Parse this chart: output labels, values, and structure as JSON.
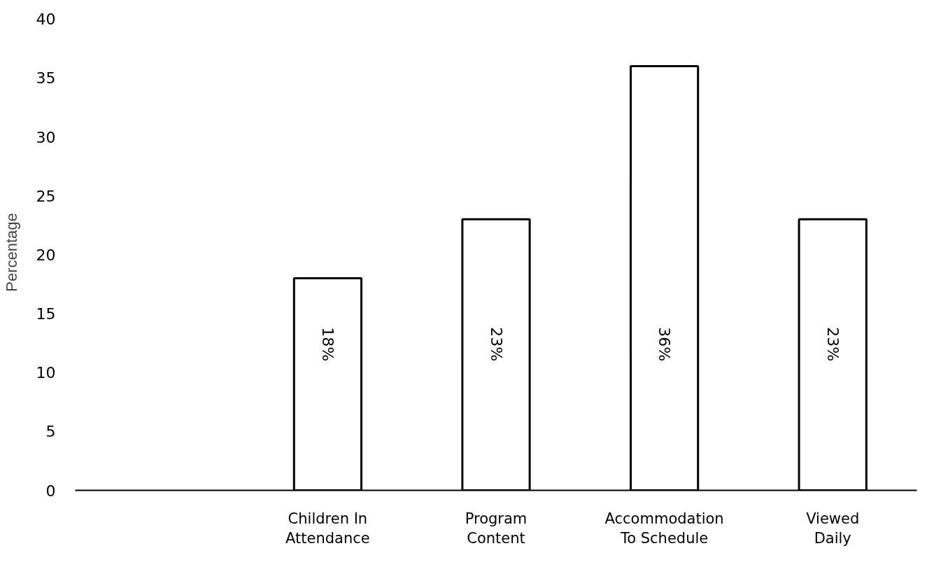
{
  "chart_data": {
    "type": "bar",
    "ylabel": "Percentage",
    "categories": [
      null,
      "Children In\nAttendance",
      "Program\nContent",
      "Accommodation\nTo Schedule",
      "Viewed\nDaily"
    ],
    "values": [
      null,
      18,
      23,
      36,
      23
    ],
    "value_labels": [
      null,
      "18%",
      "23%",
      "36%",
      "23%"
    ],
    "color": "#ffffff",
    "ylim": [
      0,
      40
    ],
    "yticks": [
      0,
      5,
      10,
      15,
      20,
      25,
      30,
      35,
      40
    ],
    "grid": false
  }
}
